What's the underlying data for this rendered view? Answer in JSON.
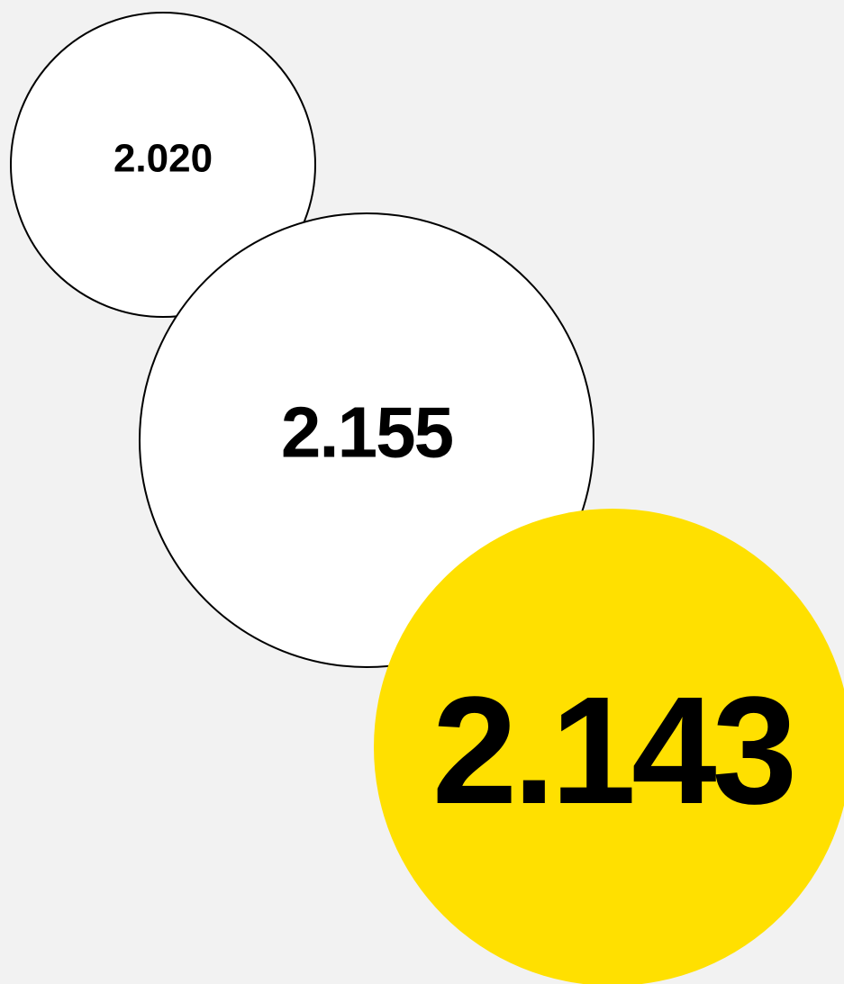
{
  "bubbles": [
    {
      "label": "2.020"
    },
    {
      "label": "2.155"
    },
    {
      "label": "2.143"
    }
  ]
}
